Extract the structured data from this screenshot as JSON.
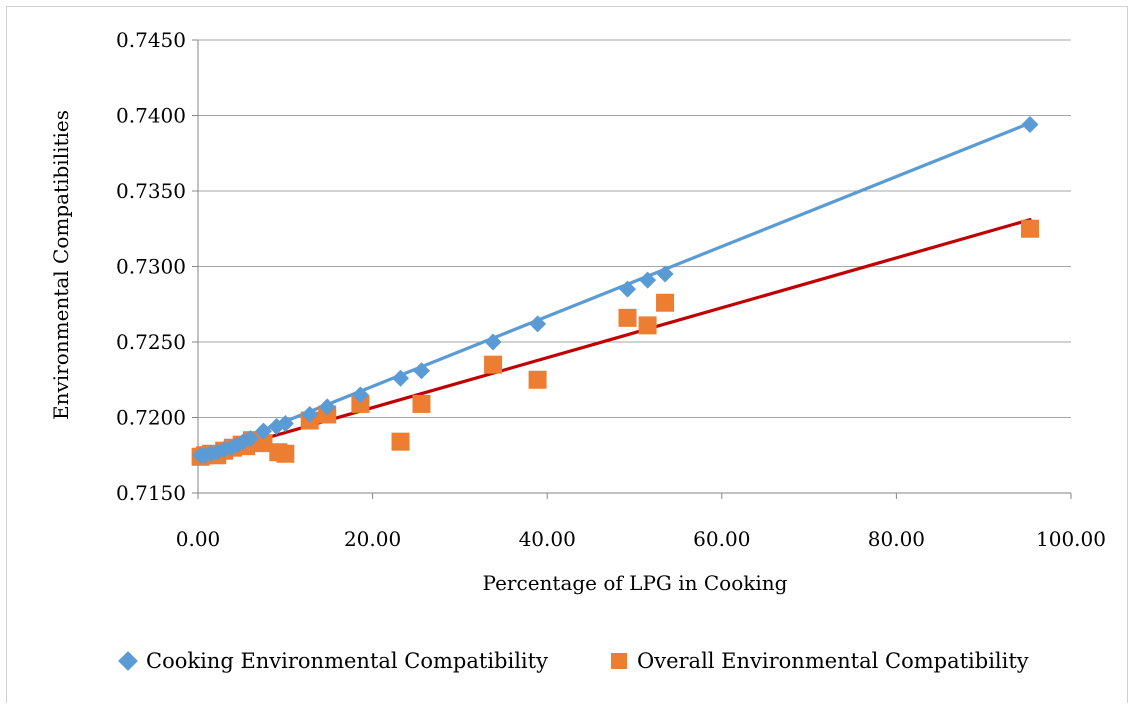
{
  "chart_data": {
    "type": "scatter",
    "title": "",
    "xlabel": "Percentage of LPG in Cooking",
    "ylabel": "Environmental Compatibilities",
    "xlim": [
      0,
      100
    ],
    "ylim": [
      0.715,
      0.745
    ],
    "xticks": [
      "0.00",
      "20.00",
      "40.00",
      "60.00",
      "80.00",
      "100.00"
    ],
    "yticks": [
      "0.7150",
      "0.7200",
      "0.7250",
      "0.7300",
      "0.7350",
      "0.7400",
      "0.7450"
    ],
    "grid": "horizontal",
    "legend_position": "bottom",
    "series": [
      {
        "name": "Cooking Environmental Compatibility",
        "marker": "diamond",
        "color": "#5b9bd5",
        "trendline_color": "#5b9bd5",
        "points": [
          [
            0.3,
            0.7175
          ],
          [
            0.8,
            0.7175
          ],
          [
            1.5,
            0.7176
          ],
          [
            2.2,
            0.7177
          ],
          [
            3.0,
            0.7179
          ],
          [
            3.8,
            0.718
          ],
          [
            4.5,
            0.7182
          ],
          [
            5.2,
            0.7184
          ],
          [
            6.0,
            0.7186
          ],
          [
            7.5,
            0.7191
          ],
          [
            9.0,
            0.7194
          ],
          [
            10.0,
            0.7196
          ],
          [
            12.8,
            0.7202
          ],
          [
            14.8,
            0.7207
          ],
          [
            18.6,
            0.7215
          ],
          [
            23.2,
            0.7226
          ],
          [
            25.6,
            0.7231
          ],
          [
            33.8,
            0.725
          ],
          [
            38.9,
            0.7262
          ],
          [
            49.2,
            0.7285
          ],
          [
            51.5,
            0.7291
          ],
          [
            53.5,
            0.7295
          ],
          [
            95.3,
            0.7394
          ]
        ],
        "trendline": [
          [
            0.3,
            0.7175
          ],
          [
            95.3,
            0.7395
          ]
        ]
      },
      {
        "name": "Overall Environmental Compatibility",
        "marker": "square",
        "color": "#ed7d31",
        "trendline_color": "#c00000",
        "points": [
          [
            0.3,
            0.7174
          ],
          [
            0.8,
            0.7175
          ],
          [
            1.5,
            0.7176
          ],
          [
            2.2,
            0.7175
          ],
          [
            3.0,
            0.7178
          ],
          [
            4.0,
            0.718
          ],
          [
            5.0,
            0.7182
          ],
          [
            5.5,
            0.7181
          ],
          [
            6.2,
            0.7185
          ],
          [
            7.5,
            0.7183
          ],
          [
            9.2,
            0.7177
          ],
          [
            10.0,
            0.7176
          ],
          [
            12.8,
            0.7198
          ],
          [
            14.8,
            0.7202
          ],
          [
            18.6,
            0.7209
          ],
          [
            23.2,
            0.7184
          ],
          [
            25.6,
            0.7209
          ],
          [
            33.8,
            0.7235
          ],
          [
            38.9,
            0.7225
          ],
          [
            49.2,
            0.7266
          ],
          [
            51.5,
            0.7261
          ],
          [
            53.5,
            0.7276
          ],
          [
            95.3,
            0.7325
          ]
        ],
        "trendline": [
          [
            0.3,
            0.7174
          ],
          [
            95.3,
            0.7331
          ]
        ]
      }
    ]
  }
}
